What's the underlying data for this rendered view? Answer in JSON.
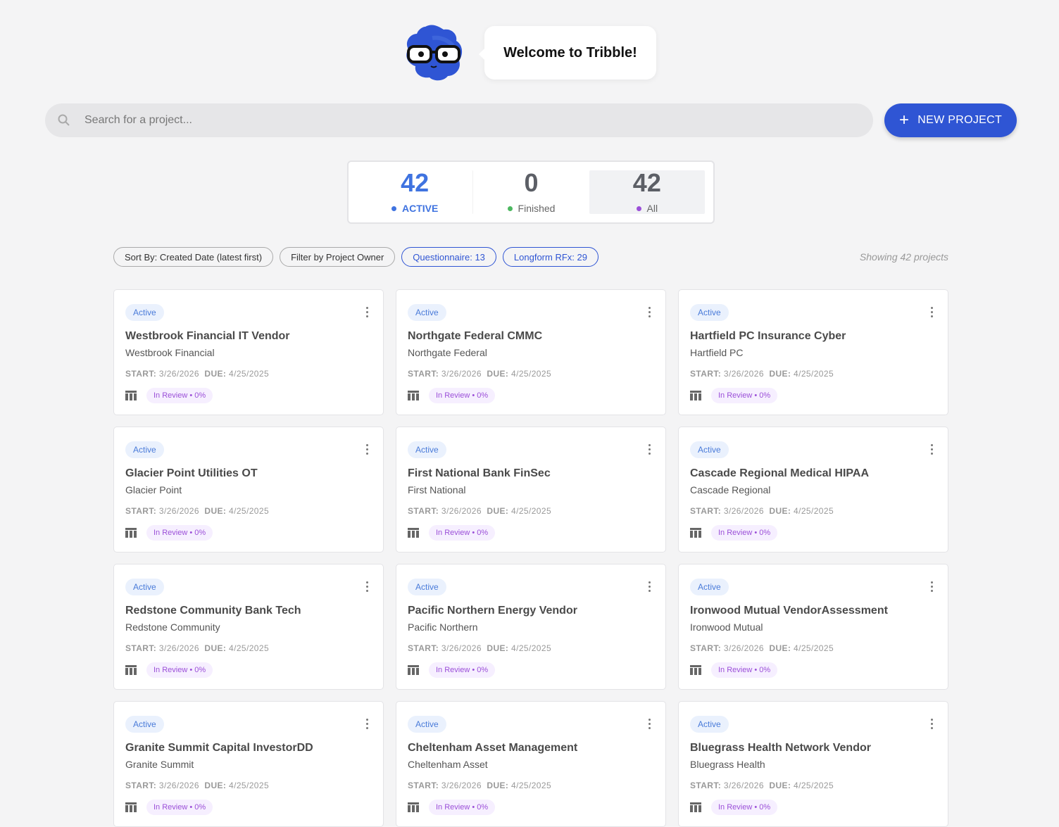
{
  "welcome": "Welcome to Tribble!",
  "search": {
    "placeholder": "Search for a project..."
  },
  "new_project_label": "NEW PROJECT",
  "stats": [
    {
      "value": "42",
      "label": "ACTIVE",
      "color": "#3f73e0"
    },
    {
      "value": "0",
      "label": "Finished",
      "color": "#4cb860"
    },
    {
      "value": "42",
      "label": "All",
      "color": "#9b4fd8"
    }
  ],
  "filters": {
    "sort": "Sort By: Created Date (latest first)",
    "owner": "Filter by Project Owner",
    "questionnaire": "Questionnaire: 13",
    "longform": "Longform RFx: 29"
  },
  "showing": "Showing 42 projects",
  "card_labels": {
    "status": "Active",
    "start": "START:",
    "due": "DUE:",
    "review": "In Review • 0%"
  },
  "projects": [
    {
      "title": "Westbrook Financial IT Vendor",
      "client": "Westbrook Financial",
      "start": "3/26/2026",
      "due": "4/25/2025"
    },
    {
      "title": "Northgate Federal CMMC",
      "client": "Northgate Federal",
      "start": "3/26/2026",
      "due": "4/25/2025"
    },
    {
      "title": "Hartfield PC Insurance Cyber",
      "client": "Hartfield PC",
      "start": "3/26/2026",
      "due": "4/25/2025"
    },
    {
      "title": "Glacier Point Utilities OT",
      "client": "Glacier Point",
      "start": "3/26/2026",
      "due": "4/25/2025"
    },
    {
      "title": "First National Bank FinSec",
      "client": "First National",
      "start": "3/26/2026",
      "due": "4/25/2025"
    },
    {
      "title": "Cascade Regional Medical HIPAA",
      "client": "Cascade Regional",
      "start": "3/26/2026",
      "due": "4/25/2025"
    },
    {
      "title": "Redstone Community Bank Tech",
      "client": "Redstone Community",
      "start": "3/26/2026",
      "due": "4/25/2025"
    },
    {
      "title": "Pacific Northern Energy Vendor",
      "client": "Pacific Northern",
      "start": "3/26/2026",
      "due": "4/25/2025"
    },
    {
      "title": "Ironwood Mutual VendorAssessment",
      "client": "Ironwood Mutual",
      "start": "3/26/2026",
      "due": "4/25/2025"
    },
    {
      "title": "Granite Summit Capital InvestorDD",
      "client": "Granite Summit",
      "start": "3/26/2026",
      "due": "4/25/2025"
    },
    {
      "title": "Cheltenham Asset Management",
      "client": "Cheltenham Asset",
      "start": "3/26/2026",
      "due": "4/25/2025"
    },
    {
      "title": "Bluegrass Health Network Vendor",
      "client": "Bluegrass Health",
      "start": "3/26/2026",
      "due": "4/25/2025"
    }
  ]
}
